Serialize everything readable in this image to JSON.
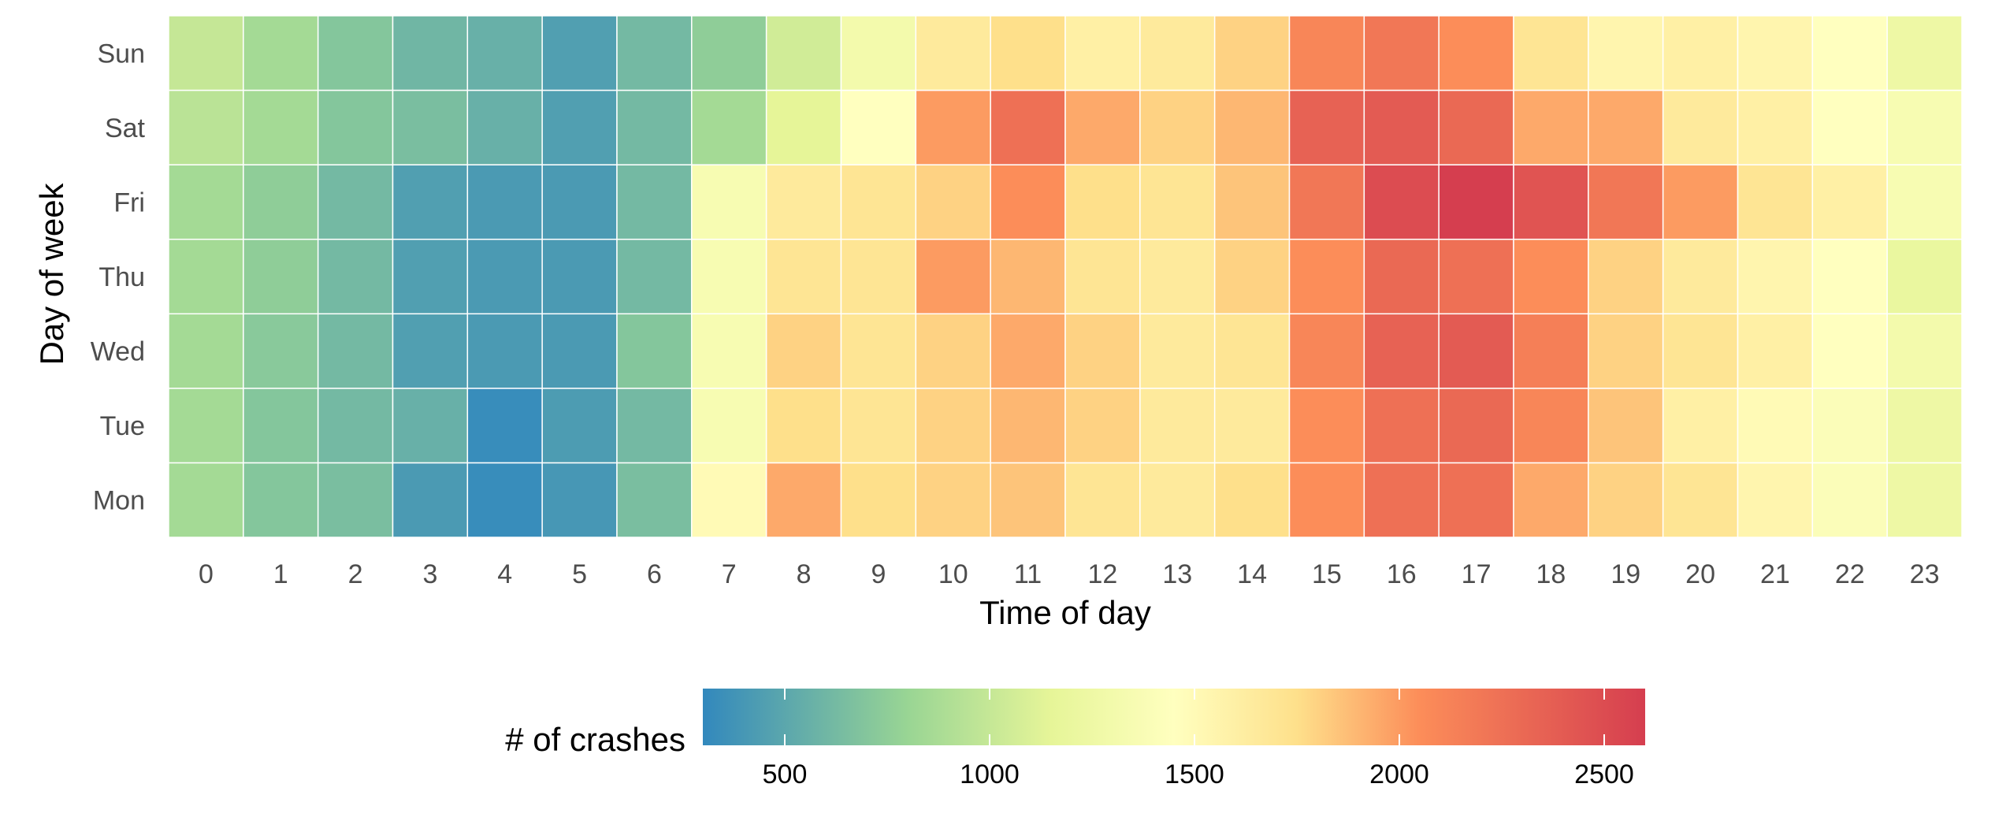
{
  "chart_data": {
    "type": "heatmap",
    "xlabel": "Time of day",
    "ylabel": "Day of week",
    "x": [
      "0",
      "1",
      "2",
      "3",
      "4",
      "5",
      "6",
      "7",
      "8",
      "9",
      "10",
      "11",
      "12",
      "13",
      "14",
      "15",
      "16",
      "17",
      "18",
      "19",
      "20",
      "21",
      "22",
      "23"
    ],
    "y": [
      "Mon",
      "Tue",
      "Wed",
      "Thu",
      "Fri",
      "Sat",
      "Sun"
    ],
    "values": [
      [
        850,
        700,
        650,
        420,
        330,
        400,
        650,
        1500,
        1950,
        1750,
        1800,
        1850,
        1700,
        1650,
        1750,
        2050,
        2250,
        2250,
        1950,
        1800,
        1700,
        1550,
        1400,
        1250
      ],
      [
        850,
        700,
        620,
        560,
        330,
        430,
        620,
        1350,
        1750,
        1700,
        1800,
        1900,
        1800,
        1650,
        1650,
        2050,
        2250,
        2300,
        2100,
        1850,
        1600,
        1500,
        1400,
        1250
      ],
      [
        850,
        720,
        620,
        450,
        420,
        420,
        700,
        1350,
        1800,
        1700,
        1800,
        1950,
        1800,
        1650,
        1700,
        2100,
        2350,
        2400,
        2150,
        1800,
        1700,
        1600,
        1450,
        1300
      ],
      [
        850,
        750,
        620,
        450,
        420,
        420,
        620,
        1350,
        1700,
        1700,
        2000,
        1900,
        1700,
        1650,
        1800,
        2050,
        2300,
        2250,
        2050,
        1800,
        1650,
        1550,
        1450,
        1200
      ],
      [
        850,
        750,
        620,
        450,
        420,
        420,
        620,
        1350,
        1650,
        1700,
        1800,
        2050,
        1750,
        1700,
        1850,
        2200,
        2500,
        2600,
        2450,
        2200,
        2000,
        1700,
        1600,
        1350
      ],
      [
        950,
        850,
        700,
        650,
        560,
        450,
        620,
        850,
        1150,
        1450,
        2000,
        2250,
        1950,
        1800,
        1900,
        2350,
        2400,
        2300,
        1950,
        1950,
        1650,
        1600,
        1450,
        1350
      ],
      [
        1000,
        850,
        700,
        600,
        560,
        450,
        620,
        750,
        1050,
        1300,
        1650,
        1750,
        1600,
        1650,
        1800,
        2100,
        2200,
        2050,
        1700,
        1550,
        1600,
        1550,
        1450,
        1250
      ]
    ],
    "color_scale": {
      "stops": [
        {
          "value": 300,
          "color": "#3288bd"
        },
        {
          "value": 800,
          "color": "#99d594"
        },
        {
          "value": 1150,
          "color": "#e6f598"
        },
        {
          "value": 1450,
          "color": "#ffffbf"
        },
        {
          "value": 1750,
          "color": "#fee08b"
        },
        {
          "value": 2050,
          "color": "#fc8d59"
        },
        {
          "value": 2600,
          "color": "#d53e4f"
        }
      ]
    },
    "legend": {
      "title": "# of crashes",
      "position": "bottom",
      "range": [
        300,
        2600
      ],
      "ticks": [
        500,
        1000,
        1500,
        2000,
        2500
      ],
      "tick_labels": [
        "500",
        "1000",
        "1500",
        "2000",
        "2500"
      ]
    },
    "grid": false
  }
}
